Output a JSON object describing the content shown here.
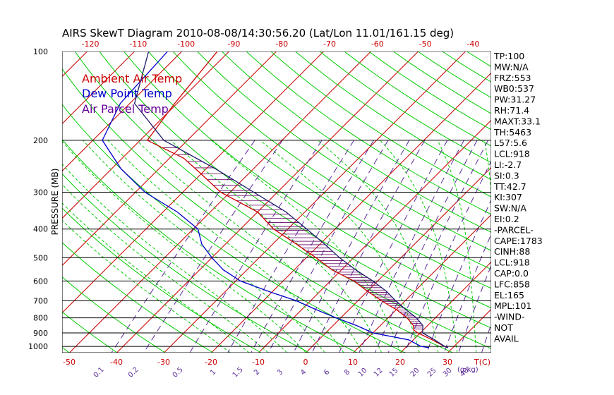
{
  "chart_data": {
    "type": "skewt",
    "title": "AIRS SkewT Diagram 2010-08-08/14:30:56.20 (Lat/Lon 11.01/161.15 deg)",
    "ylabel": "PRESSURE (MB)",
    "xlabel": "T(C)",
    "mixing_ratio_unit": "(g/kg)",
    "pressure_levels": [
      100,
      200,
      300,
      400,
      500,
      600,
      700,
      800,
      900,
      1000
    ],
    "pressure_range": [
      100,
      1050
    ],
    "top_temperature_ticks": [
      -120,
      -110,
      -100,
      -90,
      -80,
      -70,
      -60,
      -50,
      -40
    ],
    "bottom_temperature_ticks": [
      -50,
      -40,
      -30,
      -20,
      -10,
      0,
      10,
      20,
      30
    ],
    "mixing_ratio_labels": [
      "0.1",
      "0.2",
      "0.5",
      "1",
      "1.5",
      "2",
      "3",
      "4",
      "6",
      "8",
      "10",
      "12",
      "15",
      "20",
      "25",
      "30",
      "40"
    ],
    "mixing_ratio_values": [
      0.1,
      0.2,
      0.5,
      1,
      1.5,
      2,
      3,
      4,
      6,
      8,
      10,
      12,
      15,
      20,
      25,
      30,
      40
    ],
    "legend": [
      {
        "label": "Ambient Air Temp",
        "color": "#cc0000"
      },
      {
        "label": "Dew Point Temp",
        "color": "#0000cc"
      },
      {
        "label": "Air Parcel Temp",
        "color": "#660099"
      }
    ],
    "series": [
      {
        "name": "Ambient Air Temp",
        "p": [
          100,
          150,
          200,
          230,
          260,
          300,
          350,
          400,
          450,
          500,
          550,
          600,
          650,
          700,
          750,
          800,
          850,
          880,
          900,
          950,
          1000,
          1010
        ],
        "t": [
          -82.5,
          -80.5,
          -78.5,
          -67,
          -60,
          -52,
          -40,
          -33,
          -25,
          -18,
          -12,
          -5,
          0,
          5,
          10,
          14,
          17,
          18,
          19.5,
          24,
          28,
          29
        ]
      },
      {
        "name": "Dew Point Temp",
        "p": [
          100,
          150,
          200,
          250,
          300,
          350,
          400,
          450,
          500,
          550,
          600,
          650,
          700,
          750,
          800,
          850,
          900,
          950,
          1000,
          1010
        ],
        "t": [
          -93,
          -92,
          -88,
          -78,
          -68,
          -57,
          -49,
          -45,
          -40,
          -35,
          -29,
          -21,
          -13,
          -7,
          -1,
          5,
          10,
          19,
          23,
          25
        ]
      },
      {
        "name": "Air Parcel Temp",
        "p": [
          100,
          150,
          200,
          250,
          300,
          350,
          400,
          450,
          500,
          550,
          600,
          650,
          700,
          750,
          800,
          850,
          900,
          950,
          1000,
          1010
        ],
        "t": [
          -97,
          -89,
          -75,
          -58,
          -45,
          -34,
          -26,
          -19,
          -13,
          -7,
          -1,
          4,
          8,
          12,
          16,
          19,
          20.5,
          24.5,
          28,
          29
        ]
      }
    ],
    "indices": [
      "TP:100",
      "MW:N/A",
      "FRZ:553",
      "WB0:537",
      "PW:31.27",
      "RH:71.4",
      "MAXT:33.1",
      "TH:5463",
      "L57:5.6",
      "LCL:918",
      "LI:-2.7",
      "SI:0.3",
      "TT:42.7",
      "KI:307",
      "SW:N/A",
      "EI:0.2",
      "-PARCEL-",
      "CAPE:1783",
      "CINH:88",
      "LCL:918",
      "CAP:0.0",
      "LFC:858",
      "EL:165",
      "MPL:101",
      "-WIND-",
      "NOT",
      "AVAIL"
    ],
    "colors": {
      "isotherm": "#cc0000",
      "dry_adiabat": "#00cc00",
      "moist_adiabat": "#00cc00",
      "mixing_ratio": "#5a2a9a",
      "cape_hatch": "#660066",
      "isobar": "#000000"
    }
  }
}
